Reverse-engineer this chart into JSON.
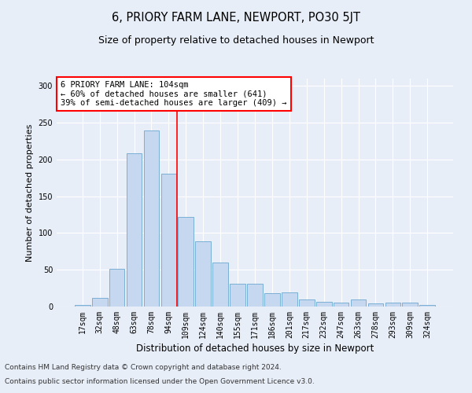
{
  "title": "6, PRIORY FARM LANE, NEWPORT, PO30 5JT",
  "subtitle": "Size of property relative to detached houses in Newport",
  "xlabel": "Distribution of detached houses by size in Newport",
  "ylabel": "Number of detached properties",
  "categories": [
    "17sqm",
    "32sqm",
    "48sqm",
    "63sqm",
    "78sqm",
    "94sqm",
    "109sqm",
    "124sqm",
    "140sqm",
    "155sqm",
    "171sqm",
    "186sqm",
    "201sqm",
    "217sqm",
    "232sqm",
    "247sqm",
    "263sqm",
    "278sqm",
    "293sqm",
    "309sqm",
    "324sqm"
  ],
  "values": [
    2,
    12,
    51,
    208,
    239,
    181,
    122,
    89,
    60,
    31,
    31,
    18,
    19,
    10,
    6,
    5,
    10,
    4,
    5,
    5,
    2
  ],
  "bar_color": "#c5d8f0",
  "bar_edge_color": "#7aafd4",
  "vline_x": 5.5,
  "vline_color": "red",
  "annotation_text": "6 PRIORY FARM LANE: 104sqm\n← 60% of detached houses are smaller (641)\n39% of semi-detached houses are larger (409) →",
  "annotation_box_color": "white",
  "annotation_box_edge_color": "red",
  "ylim": [
    0,
    310
  ],
  "yticks": [
    0,
    50,
    100,
    150,
    200,
    250,
    300
  ],
  "bg_color": "#e8eef8",
  "plot_bg_color": "#e8eef8",
  "footer_line1": "Contains HM Land Registry data © Crown copyright and database right 2024.",
  "footer_line2": "Contains public sector information licensed under the Open Government Licence v3.0.",
  "title_fontsize": 10.5,
  "subtitle_fontsize": 9,
  "xlabel_fontsize": 8.5,
  "ylabel_fontsize": 8,
  "tick_fontsize": 7,
  "annotation_fontsize": 7.5,
  "footer_fontsize": 6.5
}
